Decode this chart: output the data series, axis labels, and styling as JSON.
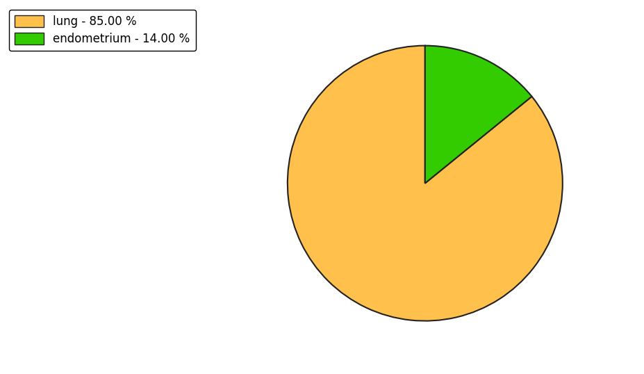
{
  "slices": [
    {
      "label": "lung - 85.00 %",
      "value": 85.0,
      "color": "#FFC04C"
    },
    {
      "label": "endometrium - 14.00 %",
      "value": 14.0,
      "color": "#33CC00"
    }
  ],
  "startangle": 90,
  "figure_width": 9.27,
  "figure_height": 5.38,
  "dpi": 100,
  "legend_fontsize": 12,
  "edge_color": "#222222",
  "edge_linewidth": 1.5
}
